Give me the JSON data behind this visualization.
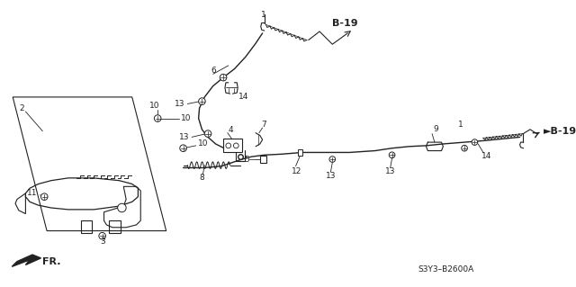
{
  "bg_color": "#ffffff",
  "tc": "#222222",
  "ref_code_top": "B-19",
  "ref_code_right": "►B-19",
  "part_code": "S3Y3–B2600A",
  "fr_label": "FR.",
  "fs": 6.5,
  "fs_bold": 7.5
}
